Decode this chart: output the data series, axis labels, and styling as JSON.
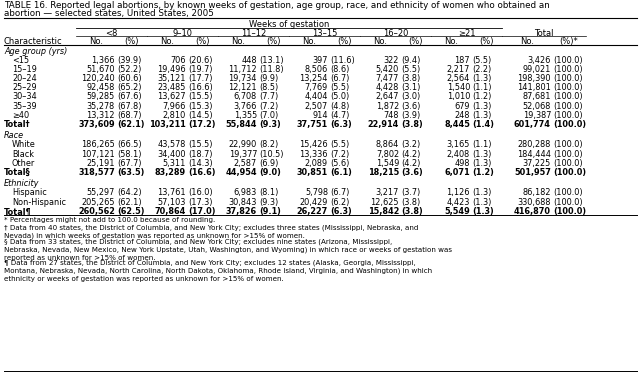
{
  "title_line1": "TABLE 16. Reported legal abortions, by known weeks of gestation, age group, race, and ethnicity of women who obtained an",
  "title_line2": "abortion — selected states, United States, 2005",
  "col_headers": [
    "<8",
    "9–10",
    "11–12",
    "13–15",
    "16–20",
    "≥21",
    "Total"
  ],
  "sections": [
    {
      "header": "Age group (yrs)",
      "rows": [
        {
          "label": "<15",
          "indent": true,
          "bold": false,
          "vals": [
            "1,366",
            "(39.9)",
            "706",
            "(20.6)",
            "448",
            "(13.1)",
            "397",
            "(11.6)",
            "322",
            "(9.4)",
            "187",
            "(5.5)",
            "3,426",
            "(100.0)"
          ]
        },
        {
          "label": "15–19",
          "indent": true,
          "bold": false,
          "vals": [
            "51,670",
            "(52.2)",
            "19,496",
            "(19.7)",
            "11,712",
            "(11.8)",
            "8,506",
            "(8.6)",
            "5,420",
            "(5.5)",
            "2,217",
            "(2.2)",
            "99,021",
            "(100.0)"
          ]
        },
        {
          "label": "20–24",
          "indent": true,
          "bold": false,
          "vals": [
            "120,240",
            "(60.6)",
            "35,121",
            "(17.7)",
            "19,734",
            "(9.9)",
            "13,254",
            "(6.7)",
            "7,477",
            "(3.8)",
            "2,564",
            "(1.3)",
            "198,390",
            "(100.0)"
          ]
        },
        {
          "label": "25–29",
          "indent": true,
          "bold": false,
          "vals": [
            "92,458",
            "(65.2)",
            "23,485",
            "(16.6)",
            "12,121",
            "(8.5)",
            "7,769",
            "(5.5)",
            "4,428",
            "(3.1)",
            "1,540",
            "(1.1)",
            "141,801",
            "(100.0)"
          ]
        },
        {
          "label": "30–34",
          "indent": true,
          "bold": false,
          "vals": [
            "59,285",
            "(67.6)",
            "13,627",
            "(15.5)",
            "6,708",
            "(7.7)",
            "4,404",
            "(5.0)",
            "2,647",
            "(3.0)",
            "1,010",
            "(1.2)",
            "87,681",
            "(100.0)"
          ]
        },
        {
          "label": "35–39",
          "indent": true,
          "bold": false,
          "vals": [
            "35,278",
            "(67.8)",
            "7,966",
            "(15.3)",
            "3,766",
            "(7.2)",
            "2,507",
            "(4.8)",
            "1,872",
            "(3.6)",
            "679",
            "(1.3)",
            "52,068",
            "(100.0)"
          ]
        },
        {
          "label": "≥40",
          "indent": true,
          "bold": false,
          "vals": [
            "13,312",
            "(68.7)",
            "2,810",
            "(14.5)",
            "1,355",
            "(7.0)",
            "914",
            "(4.7)",
            "748",
            "(3.9)",
            "248",
            "(1.3)",
            "19,387",
            "(100.0)"
          ]
        },
        {
          "label": "Total†",
          "indent": false,
          "bold": true,
          "vals": [
            "373,609",
            "(62.1)",
            "103,211",
            "(17.2)",
            "55,844",
            "(9.3)",
            "37,751",
            "(6.3)",
            "22,914",
            "(3.8)",
            "8,445",
            "(1.4)",
            "601,774",
            "(100.0)"
          ]
        }
      ]
    },
    {
      "header": "Race",
      "rows": [
        {
          "label": "White",
          "indent": true,
          "bold": false,
          "vals": [
            "186,265",
            "(66.5)",
            "43,578",
            "(15.5)",
            "22,990",
            "(8.2)",
            "15,426",
            "(5.5)",
            "8,864",
            "(3.2)",
            "3,165",
            "(1.1)",
            "280,288",
            "(100.0)"
          ]
        },
        {
          "label": "Black",
          "indent": true,
          "bold": false,
          "vals": [
            "107,121",
            "(58.1)",
            "34,400",
            "(18.7)",
            "19,377",
            "(10.5)",
            "13,336",
            "(7.2)",
            "7,802",
            "(4.2)",
            "2,408",
            "(1.3)",
            "184,444",
            "(100.0)"
          ]
        },
        {
          "label": "Other",
          "indent": true,
          "bold": false,
          "vals": [
            "25,191",
            "(67.7)",
            "5,311",
            "(14.3)",
            "2,587",
            "(6.9)",
            "2,089",
            "(5.6)",
            "1,549",
            "(4.2)",
            "498",
            "(1.3)",
            "37,225",
            "(100.0)"
          ]
        },
        {
          "label": "Total§",
          "indent": false,
          "bold": true,
          "vals": [
            "318,577",
            "(63.5)",
            "83,289",
            "(16.6)",
            "44,954",
            "(9.0)",
            "30,851",
            "(6.1)",
            "18,215",
            "(3.6)",
            "6,071",
            "(1.2)",
            "501,957",
            "(100.0)"
          ]
        }
      ]
    },
    {
      "header": "Ethnicity",
      "rows": [
        {
          "label": "Hispanic",
          "indent": true,
          "bold": false,
          "vals": [
            "55,297",
            "(64.2)",
            "13,761",
            "(16.0)",
            "6,983",
            "(8.1)",
            "5,798",
            "(6.7)",
            "3,217",
            "(3.7)",
            "1,126",
            "(1.3)",
            "86,182",
            "(100.0)"
          ]
        },
        {
          "label": "Non-Hispanic",
          "indent": true,
          "bold": false,
          "vals": [
            "205,265",
            "(62.1)",
            "57,103",
            "(17.3)",
            "30,843",
            "(9.3)",
            "20,429",
            "(6.2)",
            "12,625",
            "(3.8)",
            "4,423",
            "(1.3)",
            "330,688",
            "(100.0)"
          ]
        },
        {
          "label": "Total¶",
          "indent": false,
          "bold": true,
          "vals": [
            "260,562",
            "(62.5)",
            "70,864",
            "(17.0)",
            "37,826",
            "(9.1)",
            "26,227",
            "(6.3)",
            "15,842",
            "(3.8)",
            "5,549",
            "(1.3)",
            "416,870",
            "(100.0)"
          ]
        }
      ]
    }
  ],
  "footnotes": [
    "* Percentages might not add to 100.0 because of rounding.",
    "† Data from 40 states, the District of Columbia, and New York City; excludes three states (Mississippi, Nebraska, and Nevada) in which weeks of gestation was reported as unknown for >15% of women.",
    "§ Data from 33 states, the District of Columbia, and New York City; excludes nine states (Arizona, Mississippi, Nebraska, Nevada, New Mexico, New York Upstate, Utah, Washington, and Wyoming) in which race or weeks of gestation was reported as unknown for >15% of women.",
    "¶ Data from 27 states, the District of Columbia, and New York City; excludes 12 states (Alaska, Georgia, Mississippi, Montana, Nebraska, Nevada, North Carolina, North Dakota, Oklahoma, Rhode Island, Virginia, and Washington) in which ethnicity or weeks of gestation was reported as unknown for >15% of women."
  ]
}
